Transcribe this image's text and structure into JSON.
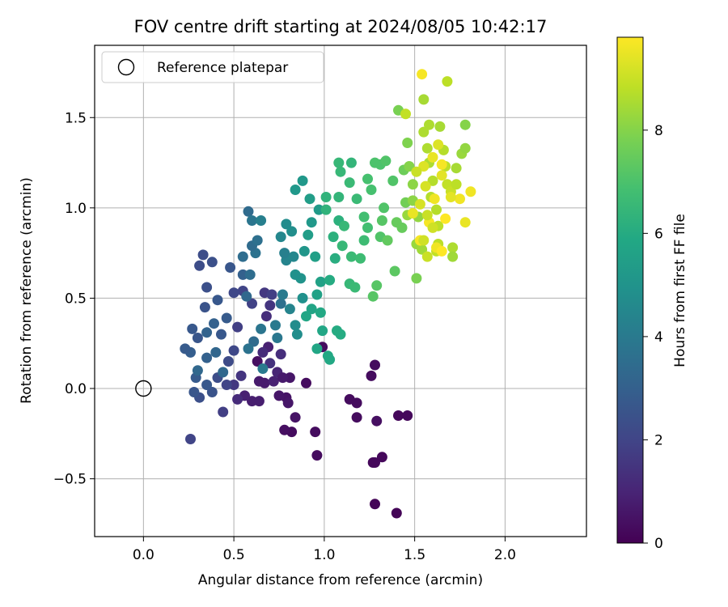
{
  "chart_data": {
    "type": "scatter",
    "title": "FOV centre drift starting at 2024/08/05 10:42:17",
    "xlabel": "Angular distance from reference (arcmin)",
    "ylabel": "Rotation from reference (arcmin)",
    "xlim": [
      -0.27,
      2.45
    ],
    "ylim": [
      -0.82,
      1.9
    ],
    "xticks": [
      0.0,
      0.5,
      1.0,
      1.5,
      2.0
    ],
    "xtick_labels": [
      "0.0",
      "0.5",
      "1.0",
      "1.5",
      "2.0"
    ],
    "yticks": [
      -0.5,
      0.0,
      0.5,
      1.0,
      1.5
    ],
    "ytick_labels": [
      "−0.5",
      "0.0",
      "0.5",
      "1.0",
      "1.5"
    ],
    "grid": true,
    "legend": {
      "placement": "top-left",
      "entries": [
        "Reference platepar"
      ]
    },
    "colorbar": {
      "label": "Hours from first FF file",
      "range": [
        0,
        9.8
      ],
      "ticks": [
        0,
        2,
        4,
        6,
        8
      ],
      "tick_labels": [
        "0",
        "2",
        "4",
        "6",
        "8"
      ],
      "colormap": "viridis"
    },
    "reference_point": {
      "name": "Reference platepar",
      "x": 0.0,
      "y": 0.0
    },
    "series": [
      {
        "points": [
          [
            0.99,
            0.23,
            0.3
          ],
          [
            0.9,
            0.03,
            0.3
          ],
          [
            0.95,
            -0.24,
            0.3
          ],
          [
            0.82,
            -0.24,
            0.3
          ],
          [
            0.78,
            -0.23,
            0.4
          ],
          [
            0.96,
            -0.37,
            0.3
          ],
          [
            0.84,
            -0.16,
            0.5
          ],
          [
            0.79,
            -0.05,
            0.5
          ],
          [
            0.8,
            -0.08,
            0.6
          ],
          [
            0.75,
            -0.04,
            0.6
          ],
          [
            0.67,
            0.03,
            0.7
          ],
          [
            0.64,
            0.04,
            0.7
          ],
          [
            0.64,
            -0.07,
            0.8
          ],
          [
            0.6,
            -0.07,
            0.8
          ],
          [
            0.56,
            -0.04,
            0.9
          ],
          [
            0.72,
            0.04,
            0.9
          ],
          [
            0.74,
            0.09,
            1.0
          ],
          [
            0.63,
            0.15,
            0.4
          ],
          [
            0.81,
            0.06,
            0.6
          ],
          [
            0.77,
            0.06,
            0.7
          ],
          [
            0.69,
            0.23,
            0.9
          ],
          [
            1.14,
            -0.06,
            0.3
          ],
          [
            1.18,
            -0.08,
            0.3
          ],
          [
            1.18,
            -0.16,
            0.3
          ],
          [
            1.29,
            -0.18,
            0.4
          ],
          [
            1.26,
            0.07,
            0.3
          ],
          [
            1.28,
            0.13,
            0.3
          ],
          [
            1.41,
            -0.15,
            0.2
          ],
          [
            1.46,
            -0.15,
            0.2
          ],
          [
            1.32,
            -0.38,
            0.2
          ],
          [
            1.27,
            -0.41,
            0.2
          ],
          [
            1.28,
            -0.64,
            0.1
          ],
          [
            1.4,
            -0.69,
            0.1
          ],
          [
            1.28,
            -0.41,
            0.2
          ],
          [
            0.66,
            0.2,
            1.2
          ],
          [
            0.7,
            0.14,
            1.4
          ],
          [
            0.76,
            0.19,
            1.3
          ],
          [
            0.68,
            0.4,
            1.3
          ],
          [
            0.7,
            0.46,
            1.5
          ],
          [
            0.67,
            0.53,
            1.6
          ],
          [
            0.71,
            0.52,
            1.8
          ],
          [
            0.6,
            0.47,
            1.9
          ],
          [
            0.55,
            0.54,
            2.0
          ],
          [
            0.5,
            0.53,
            2.1
          ],
          [
            0.52,
            0.34,
            1.8
          ],
          [
            0.5,
            0.21,
            2.1
          ],
          [
            0.47,
            0.15,
            2.2
          ],
          [
            0.5,
            0.02,
            1.6
          ],
          [
            0.46,
            0.02,
            2.0
          ],
          [
            0.54,
            0.07,
            1.5
          ],
          [
            0.52,
            -0.06,
            1.2
          ],
          [
            0.41,
            0.06,
            2.3
          ],
          [
            0.38,
            -0.02,
            2.5
          ],
          [
            0.31,
            -0.05,
            2.4
          ],
          [
            0.44,
            -0.13,
            1.8
          ],
          [
            0.26,
            -0.28,
            2.0
          ],
          [
            0.28,
            -0.02,
            2.6
          ],
          [
            0.35,
            0.02,
            2.7
          ],
          [
            0.29,
            0.06,
            2.8
          ],
          [
            0.26,
            0.2,
            2.9
          ],
          [
            0.23,
            0.22,
            2.8
          ],
          [
            0.27,
            0.33,
            2.7
          ],
          [
            0.3,
            0.28,
            2.6
          ],
          [
            0.34,
            0.45,
            2.5
          ],
          [
            0.35,
            0.56,
            2.4
          ],
          [
            0.33,
            0.74,
            2.3
          ],
          [
            0.31,
            0.68,
            2.3
          ],
          [
            0.38,
            0.7,
            2.4
          ],
          [
            0.41,
            0.49,
            2.7
          ],
          [
            0.43,
            0.3,
            2.7
          ],
          [
            0.39,
            0.36,
            3.0
          ],
          [
            0.35,
            0.31,
            3.1
          ],
          [
            0.4,
            0.2,
            3.2
          ],
          [
            0.35,
            0.17,
            3.0
          ],
          [
            0.3,
            0.1,
            3.3
          ],
          [
            0.44,
            0.09,
            3.3
          ],
          [
            0.46,
            0.39,
            2.8
          ],
          [
            0.48,
            0.67,
            2.6
          ],
          [
            0.55,
            0.63,
            3.0
          ],
          [
            0.57,
            0.51,
            3.3
          ],
          [
            0.59,
            0.63,
            3.5
          ],
          [
            0.55,
            0.73,
            3.5
          ],
          [
            0.62,
            0.75,
            3.7
          ],
          [
            0.6,
            0.79,
            3.4
          ],
          [
            0.63,
            0.82,
            3.6
          ],
          [
            0.58,
            0.98,
            3.4
          ],
          [
            0.6,
            0.93,
            3.8
          ],
          [
            0.65,
            0.93,
            4.2
          ],
          [
            0.65,
            0.33,
            3.8
          ],
          [
            0.61,
            0.26,
            3.4
          ],
          [
            0.58,
            0.22,
            3.7
          ],
          [
            0.66,
            0.11,
            4.0
          ],
          [
            0.73,
            0.35,
            4.0
          ],
          [
            0.74,
            0.28,
            3.9
          ],
          [
            0.76,
            0.47,
            3.6
          ],
          [
            0.77,
            0.52,
            4.0
          ],
          [
            0.79,
            0.71,
            4.4
          ],
          [
            0.76,
            0.84,
            4.5
          ],
          [
            0.79,
            0.91,
            4.7
          ],
          [
            0.83,
            0.73,
            4.5
          ],
          [
            0.82,
            0.87,
            4.8
          ],
          [
            0.78,
            0.75,
            4.2
          ],
          [
            0.81,
            0.44,
            4.4
          ],
          [
            0.84,
            0.35,
            4.7
          ],
          [
            0.85,
            0.3,
            4.8
          ],
          [
            0.88,
            0.5,
            4.9
          ],
          [
            0.87,
            0.61,
            5.0
          ],
          [
            0.84,
            0.63,
            4.9
          ],
          [
            0.89,
            0.76,
            5.1
          ],
          [
            0.93,
            0.92,
            5.2
          ],
          [
            0.97,
            0.99,
            5.3
          ],
          [
            0.92,
            1.05,
            5.4
          ],
          [
            0.84,
            1.1,
            5.2
          ],
          [
            0.88,
            1.15,
            5.2
          ],
          [
            0.91,
            0.85,
            5.4
          ],
          [
            0.95,
            0.73,
            5.5
          ],
          [
            0.98,
            0.59,
            5.6
          ],
          [
            0.96,
            0.52,
            5.6
          ],
          [
            0.93,
            0.44,
            5.7
          ],
          [
            0.9,
            0.4,
            5.8
          ],
          [
            0.98,
            0.42,
            5.9
          ],
          [
            0.99,
            0.32,
            5.8
          ],
          [
            1.03,
            0.16,
            5.9
          ],
          [
            1.02,
            0.18,
            5.9
          ],
          [
            0.96,
            0.22,
            5.8
          ],
          [
            1.07,
            0.32,
            6.0
          ],
          [
            1.09,
            0.3,
            6.0
          ],
          [
            1.03,
            0.6,
            6.0
          ],
          [
            1.06,
            0.72,
            6.1
          ],
          [
            1.05,
            0.84,
            6.2
          ],
          [
            1.08,
            0.93,
            6.2
          ],
          [
            1.01,
            0.99,
            6.3
          ],
          [
            1.01,
            1.06,
            6.3
          ],
          [
            1.08,
            1.06,
            6.4
          ],
          [
            1.08,
            1.25,
            6.5
          ],
          [
            1.09,
            1.2,
            6.5
          ],
          [
            1.14,
            1.14,
            6.6
          ],
          [
            1.15,
            1.25,
            6.4
          ],
          [
            1.18,
            1.05,
            6.6
          ],
          [
            1.11,
            0.9,
            6.5
          ],
          [
            1.1,
            0.79,
            6.5
          ],
          [
            1.15,
            0.73,
            6.6
          ],
          [
            1.14,
            0.58,
            6.5
          ],
          [
            1.17,
            0.56,
            6.6
          ],
          [
            1.2,
            0.72,
            6.7
          ],
          [
            1.22,
            0.82,
            6.7
          ],
          [
            1.24,
            0.89,
            6.8
          ],
          [
            1.22,
            0.95,
            6.8
          ],
          [
            1.26,
            1.1,
            6.9
          ],
          [
            1.24,
            1.16,
            6.9
          ],
          [
            1.28,
            1.25,
            7.0
          ],
          [
            1.31,
            1.24,
            7.0
          ],
          [
            1.34,
            1.26,
            7.1
          ],
          [
            1.38,
            1.15,
            7.1
          ],
          [
            1.33,
            1.0,
            7.1
          ],
          [
            1.31,
            0.84,
            7.1
          ],
          [
            1.32,
            0.93,
            7.2
          ],
          [
            1.29,
            0.57,
            7.2
          ],
          [
            1.27,
            0.51,
            7.2
          ],
          [
            1.35,
            0.82,
            7.4
          ],
          [
            1.39,
            0.65,
            7.3
          ],
          [
            1.4,
            0.92,
            7.5
          ],
          [
            1.43,
            0.89,
            7.5
          ],
          [
            1.45,
            1.03,
            7.7
          ],
          [
            1.44,
            1.21,
            7.6
          ],
          [
            1.41,
            1.54,
            7.8
          ],
          [
            1.45,
            1.52,
            8.9
          ],
          [
            1.46,
            1.36,
            7.9
          ],
          [
            1.47,
            1.23,
            8.0
          ],
          [
            1.49,
            1.13,
            8.1
          ],
          [
            1.49,
            1.04,
            8.1
          ],
          [
            1.52,
            0.95,
            8.2
          ],
          [
            1.46,
            0.96,
            8.3
          ],
          [
            1.51,
            0.8,
            8.3
          ],
          [
            1.51,
            0.61,
            7.8
          ],
          [
            1.54,
            0.77,
            8.4
          ],
          [
            1.55,
            1.6,
            8.5
          ],
          [
            1.55,
            1.42,
            8.6
          ],
          [
            1.57,
            1.33,
            8.6
          ],
          [
            1.58,
            1.25,
            8.6
          ],
          [
            1.6,
            1.15,
            8.7
          ],
          [
            1.59,
            1.06,
            8.7
          ],
          [
            1.62,
            0.99,
            8.7
          ],
          [
            1.63,
            0.9,
            8.8
          ],
          [
            1.63,
            0.8,
            8.8
          ],
          [
            1.62,
            0.76,
            8.9
          ],
          [
            1.58,
            1.46,
            8.6
          ],
          [
            1.64,
            1.45,
            8.5
          ],
          [
            1.66,
            1.32,
            8.7
          ],
          [
            1.67,
            1.23,
            8.8
          ],
          [
            1.68,
            1.13,
            8.9
          ],
          [
            1.7,
            1.09,
            9.0
          ],
          [
            1.71,
            0.78,
            8.6
          ],
          [
            1.71,
            0.73,
            8.4
          ],
          [
            1.73,
            1.13,
            8.8
          ],
          [
            1.73,
            1.22,
            8.5
          ],
          [
            1.76,
            1.3,
            8.3
          ],
          [
            1.78,
            1.46,
            8.0
          ],
          [
            1.78,
            1.33,
            8.2
          ],
          [
            1.68,
            1.7,
            8.8
          ],
          [
            1.54,
            1.74,
            9.7
          ],
          [
            1.65,
            1.24,
            9.7
          ],
          [
            1.75,
            1.05,
            9.6
          ],
          [
            1.81,
            1.09,
            9.6
          ],
          [
            1.78,
            0.92,
            9.5
          ],
          [
            1.67,
            0.94,
            9.8
          ],
          [
            1.61,
            1.05,
            9.6
          ],
          [
            1.58,
            0.92,
            9.7
          ],
          [
            1.62,
            0.78,
            9.6
          ],
          [
            1.65,
            0.76,
            9.8
          ],
          [
            1.53,
            0.82,
            9.7
          ],
          [
            1.49,
            0.97,
            9.5
          ],
          [
            1.6,
            1.28,
            9.5
          ],
          [
            1.65,
            1.18,
            9.4
          ],
          [
            1.55,
            1.23,
            9.3
          ],
          [
            1.56,
            1.12,
            9.2
          ],
          [
            1.53,
            1.02,
            9.2
          ],
          [
            1.6,
            0.89,
            9.1
          ],
          [
            1.55,
            0.82,
            9.1
          ],
          [
            1.57,
            0.73,
            9.0
          ],
          [
            1.57,
            0.96,
            9.0
          ],
          [
            1.51,
            1.2,
            9.0
          ],
          [
            1.63,
            1.35,
            9.3
          ],
          [
            1.7,
            1.06,
            9.4
          ]
        ]
      }
    ]
  }
}
